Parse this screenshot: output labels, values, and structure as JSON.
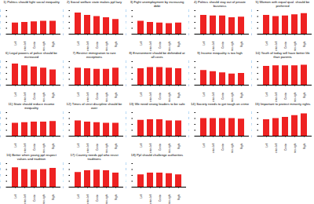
{
  "chart_data": [
    {
      "type": "bar",
      "title": "1) Politics should fight social inequality",
      "categories": [
        "Left",
        "Center-left",
        "Center",
        "Center-right",
        "Right"
      ],
      "values": [
        1.9,
        2.0,
        2.1,
        2.2,
        2.2
      ],
      "color": "#ee2222",
      "ylim": [
        0,
        4
      ],
      "yticks": [
        0,
        1,
        2,
        3,
        4
      ]
    },
    {
      "type": "bar",
      "title": "2) Social welfare state makes ppl lazy",
      "categories": [
        "Left",
        "Center-left",
        "Center",
        "Center-right",
        "Right"
      ],
      "values": [
        3.6,
        3.2,
        3.0,
        2.8,
        2.5
      ],
      "color": "#ee2222",
      "ylim": [
        0,
        4
      ],
      "yticks": [
        0,
        1,
        2,
        3,
        4
      ]
    },
    {
      "type": "bar",
      "title": "3) Fight unemployment by increasing debt",
      "categories": [
        "Left",
        "Center-left",
        "Center",
        "Center-right",
        "Right"
      ],
      "values": [
        2.2,
        2.0,
        1.9,
        1.8,
        1.9
      ],
      "color": "#ee2222",
      "ylim": [
        0,
        4
      ],
      "yticks": [
        0,
        1,
        2,
        3,
        4
      ]
    },
    {
      "type": "bar",
      "title": "4) Politics should stay out of private business",
      "categories": [
        "Left",
        "Center-left",
        "Center",
        "Center-right",
        "Right"
      ],
      "values": [
        3.2,
        3.1,
        3.1,
        2.8,
        2.9
      ],
      "color": "#ee2222",
      "ylim": [
        0,
        4
      ],
      "yticks": [
        0,
        1,
        2,
        3,
        4
      ]
    },
    {
      "type": "bar",
      "title": "5) Women with equal qual. should be preferred",
      "categories": [
        "Left",
        "Center-left",
        "Center",
        "Center-right",
        "Right"
      ],
      "values": [
        3.2,
        3.0,
        3.1,
        3.3,
        3.5
      ],
      "color": "#ee2222",
      "ylim": [
        0,
        4
      ],
      "yticks": [
        0,
        1,
        2,
        3,
        4
      ]
    },
    {
      "type": "bar",
      "title": "6) Legal powers of police should be increased",
      "categories": [
        "Left",
        "Center-left",
        "Center",
        "Center-right",
        "Right"
      ],
      "values": [
        3.6,
        3.3,
        3.1,
        2.9,
        2.6
      ],
      "color": "#ee2222",
      "ylim": [
        0,
        4
      ],
      "yticks": [
        0,
        1,
        2,
        3,
        4
      ]
    },
    {
      "type": "bar",
      "title": "7) Restrict immigration to rare exceptions",
      "categories": [
        "Left",
        "Center-left",
        "Center",
        "Center-right",
        "Right"
      ],
      "values": [
        2.9,
        2.8,
        2.7,
        2.7,
        2.9
      ],
      "color": "#ee2222",
      "ylim": [
        0,
        4
      ],
      "yticks": [
        0,
        1,
        2,
        3,
        4
      ]
    },
    {
      "type": "bar",
      "title": "8) Environment should be defended at all costs",
      "categories": [
        "Left",
        "Center-left",
        "Center",
        "Center-right",
        "Right"
      ],
      "values": [
        2.8,
        3.0,
        3.0,
        2.9,
        2.8
      ],
      "color": "#ee2222",
      "ylim": [
        0,
        4
      ],
      "yticks": [
        0,
        1,
        2,
        3,
        4
      ]
    },
    {
      "type": "bar",
      "title": "9) Income inequality is too high",
      "categories": [
        "Left",
        "Center-left",
        "Center",
        "Center-right",
        "Right"
      ],
      "values": [
        2.5,
        2.3,
        2.1,
        1.9,
        2.0
      ],
      "color": "#ee2222",
      "ylim": [
        0,
        4
      ],
      "yticks": [
        0,
        1,
        2,
        3,
        4
      ]
    },
    {
      "type": "bar",
      "title": "10) Youth of today will have better life than parents",
      "categories": [
        "Left",
        "Center-left",
        "Center",
        "Center-right",
        "Right"
      ],
      "values": [
        3.2,
        3.3,
        3.3,
        3.3,
        3.4
      ],
      "color": "#ee2222",
      "ylim": [
        0,
        4
      ],
      "yticks": [
        0,
        1,
        2,
        3,
        4
      ]
    },
    {
      "type": "bar",
      "title": "11) State should reduce income inequality",
      "categories": [
        "Left",
        "Center-left",
        "Center",
        "Center-right",
        "Right"
      ],
      "values": [
        2.2,
        2.3,
        2.4,
        2.4,
        2.5
      ],
      "color": "#ee2222",
      "ylim": [
        0,
        4
      ],
      "yticks": [
        0,
        1,
        2,
        3,
        4
      ]
    },
    {
      "type": "bar",
      "title": "12) Times of strict discipline should be over",
      "categories": [
        "Left",
        "Center-left",
        "Center",
        "Center-right",
        "Right"
      ],
      "values": [
        2.6,
        2.4,
        2.3,
        2.2,
        2.2
      ],
      "color": "#ee2222",
      "ylim": [
        0,
        4
      ],
      "yticks": [
        0,
        1,
        2,
        3,
        4
      ]
    },
    {
      "type": "bar",
      "title": "13) We need strong leaders to be safe",
      "categories": [
        "Left",
        "Center-left",
        "Center",
        "Center-right",
        "Right"
      ],
      "values": [
        2.7,
        2.8,
        2.8,
        2.6,
        2.6
      ],
      "color": "#ee2222",
      "ylim": [
        0,
        4
      ],
      "yticks": [
        0,
        1,
        2,
        3,
        4
      ]
    },
    {
      "type": "bar",
      "title": "14) Society needs to get tough on crime",
      "categories": [
        "Left",
        "Center-left",
        "Center",
        "Center-right",
        "Right"
      ],
      "values": [
        3.0,
        3.0,
        3.0,
        3.0,
        2.9
      ],
      "color": "#ee2222",
      "ylim": [
        0,
        4
      ],
      "yticks": [
        0,
        1,
        2,
        3,
        4
      ]
    },
    {
      "type": "bar",
      "title": "15) Important to protect minority rights",
      "categories": [
        "Left",
        "Center-left",
        "Center",
        "Center-right",
        "Right"
      ],
      "values": [
        2.8,
        3.0,
        3.2,
        3.5,
        3.8
      ],
      "color": "#ee2222",
      "ylim": [
        0,
        4
      ],
      "yticks": [
        0,
        1,
        2,
        3,
        4
      ]
    },
    {
      "type": "bar",
      "title": "16) Better when young ppl respect values and tradition",
      "categories": [
        "Left",
        "Center-left",
        "Center",
        "Center-right",
        "Right"
      ],
      "values": [
        3.3,
        3.0,
        2.9,
        3.0,
        3.2
      ],
      "color": "#ee2222",
      "ylim": [
        0,
        4
      ],
      "yticks": [
        0,
        1,
        2,
        3,
        4
      ]
    },
    {
      "type": "bar",
      "title": "17) Country needs ppl who resist traditions",
      "categories": [
        "Left",
        "Center-left",
        "Center",
        "Center-right",
        "Right"
      ],
      "values": [
        2.5,
        2.8,
        2.9,
        2.8,
        2.4
      ],
      "color": "#ee2222",
      "ylim": [
        0,
        4
      ],
      "yticks": [
        0,
        1,
        2,
        3,
        4
      ]
    },
    {
      "type": "bar",
      "title": "18) Ppl should challenge authorities",
      "categories": [
        "Left",
        "Center-left",
        "Center",
        "Center-right",
        "Right"
      ],
      "values": [
        2.1,
        2.4,
        2.4,
        2.3,
        2.1
      ],
      "color": "#ee2222",
      "ylim": [
        0,
        4
      ],
      "yticks": [
        0,
        1,
        2,
        3,
        4
      ]
    }
  ]
}
